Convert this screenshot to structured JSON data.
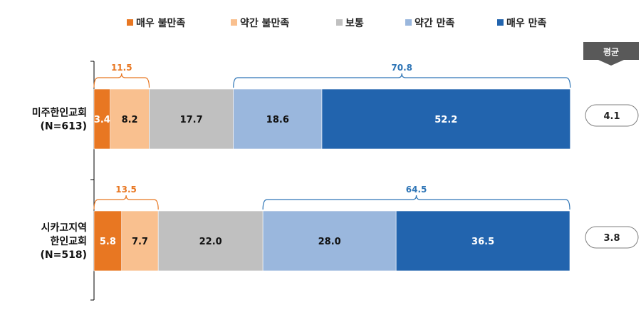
{
  "chart_data": {
    "type": "bar",
    "orientation": "horizontal",
    "stacked": true,
    "unit": "%",
    "categories": [
      [
        "미주한인교회",
        "(N=613)"
      ],
      [
        "시카고지역",
        "한인교회",
        "(N=518)"
      ]
    ],
    "series": [
      {
        "name": "매우 불만족",
        "color": "#E87722",
        "label_color": "#ffffff",
        "values": [
          3.4,
          5.8
        ]
      },
      {
        "name": "약간 불만족",
        "color": "#F9C08F",
        "label_color": "#111111",
        "values": [
          8.2,
          7.7
        ]
      },
      {
        "name": "보통",
        "color": "#C0C0C0",
        "label_color": "#111111",
        "values": [
          17.7,
          22.0
        ]
      },
      {
        "name": "약간 만족",
        "color": "#9AB7DD",
        "label_color": "#111111",
        "values": [
          18.6,
          28.0
        ]
      },
      {
        "name": "매우 만족",
        "color": "#2264AE",
        "label_color": "#ffffff",
        "values": [
          52.2,
          36.5
        ]
      }
    ],
    "dissatisfied_totals": [
      11.5,
      13.5
    ],
    "satisfied_totals": [
      70.8,
      64.5
    ],
    "dissatisfied_color": "#E87722",
    "satisfied_color": "#2E75B6",
    "averages_title": "평균",
    "averages": [
      "4.1",
      "3.8"
    ],
    "legend_position": "top",
    "xlim": [
      0,
      100
    ]
  }
}
